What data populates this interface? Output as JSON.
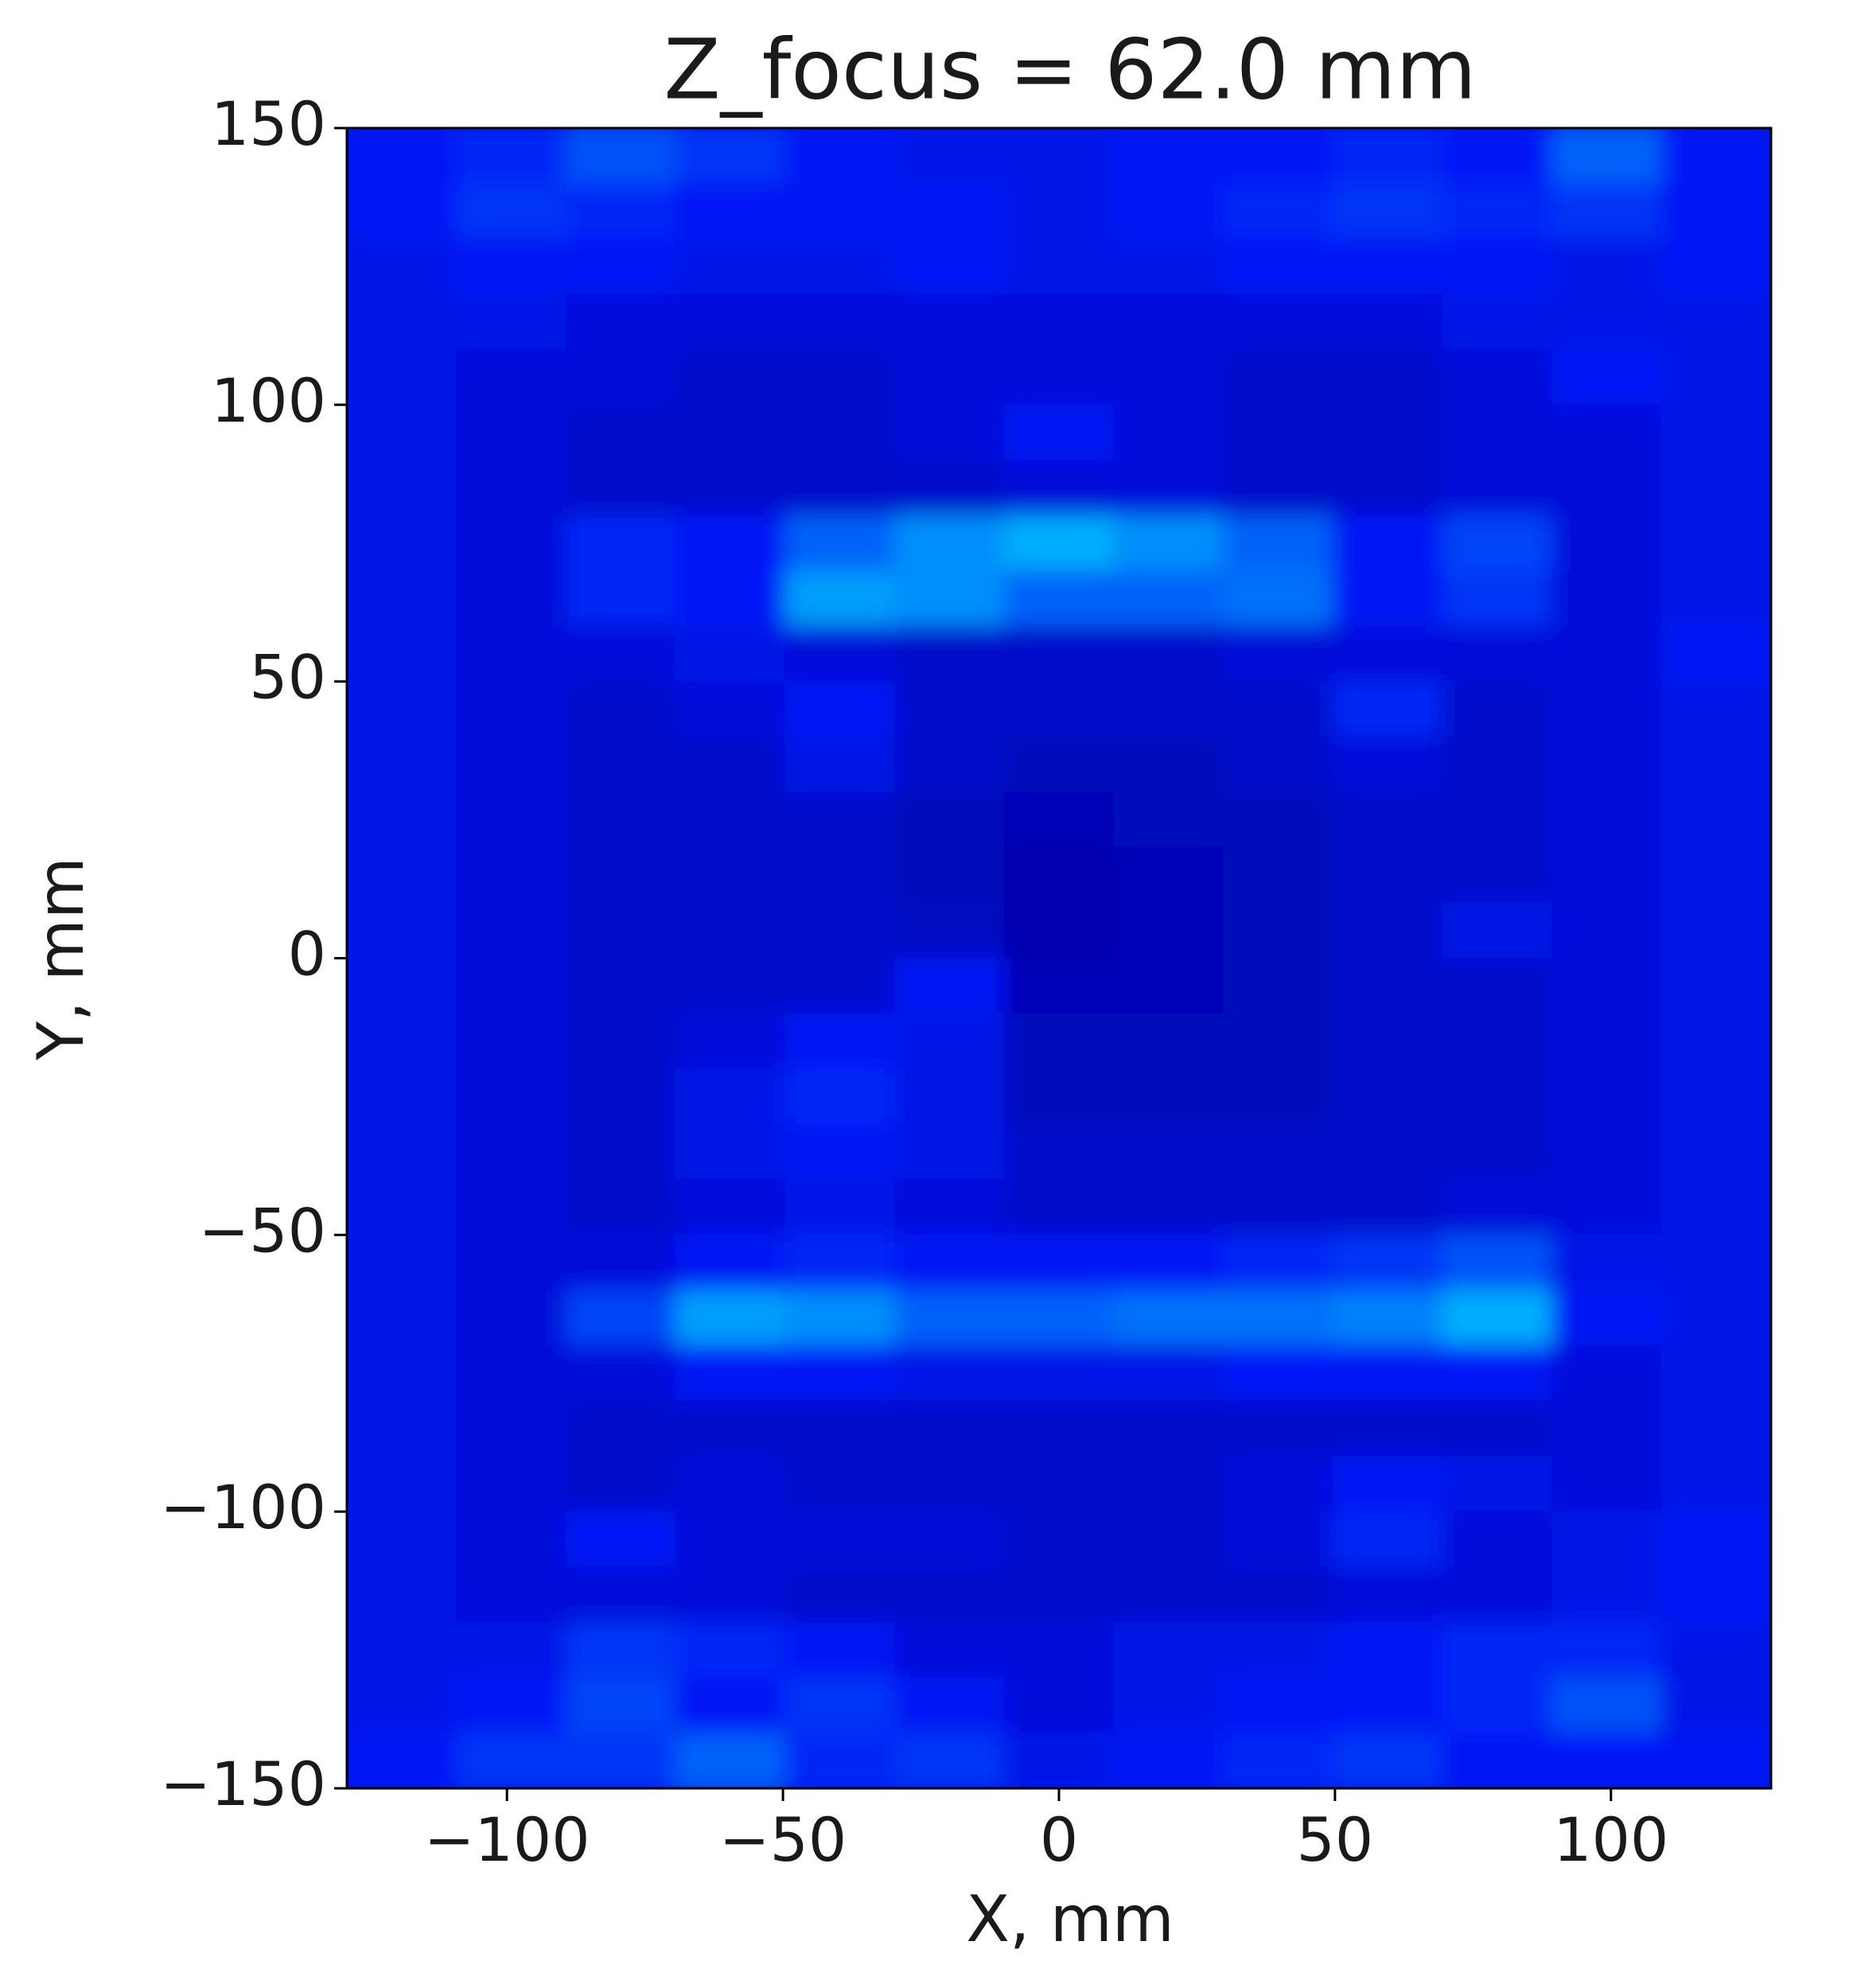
{
  "chart_data": {
    "type": "heatmap",
    "title": "Z_focus = 62.0 mm",
    "x_label": "X, mm",
    "y_label": "Y, mm",
    "xlim": [
      -129,
      129
    ],
    "ylim": [
      -150,
      150
    ],
    "xticks": [
      {
        "value": -100,
        "label": "−100"
      },
      {
        "value": -50,
        "label": "−50"
      },
      0,
      50,
      100
    ],
    "yticks": [
      {
        "value": -150,
        "label": "−150"
      },
      {
        "value": -100,
        "label": "−100"
      },
      {
        "value": -50,
        "label": "−50"
      },
      0,
      50,
      100,
      150
    ],
    "colorscale": [
      [
        0,
        "#0000a0"
      ],
      [
        0.3,
        "#0018f5"
      ],
      [
        1,
        "#00e8ff"
      ]
    ],
    "z": [
      [
        0.3,
        0.35,
        0.5,
        0.4,
        0.3,
        0.25,
        0.25,
        0.3,
        0.3,
        0.35,
        0.3,
        0.55,
        0.3
      ],
      [
        0.3,
        0.4,
        0.35,
        0.3,
        0.3,
        0.3,
        0.25,
        0.3,
        0.35,
        0.4,
        0.35,
        0.4,
        0.3
      ],
      [
        0.25,
        0.3,
        0.3,
        0.25,
        0.25,
        0.3,
        0.25,
        0.25,
        0.3,
        0.3,
        0.3,
        0.25,
        0.3
      ],
      [
        0.25,
        0.25,
        0.2,
        0.2,
        0.2,
        0.2,
        0.2,
        0.2,
        0.2,
        0.2,
        0.25,
        0.25,
        0.25
      ],
      [
        0.25,
        0.2,
        0.2,
        0.15,
        0.15,
        0.2,
        0.2,
        0.2,
        0.15,
        0.15,
        0.2,
        0.3,
        0.25
      ],
      [
        0.25,
        0.2,
        0.15,
        0.15,
        0.15,
        0.2,
        0.3,
        0.2,
        0.15,
        0.15,
        0.2,
        0.2,
        0.25
      ],
      [
        0.25,
        0.2,
        0.15,
        0.15,
        0.15,
        0.15,
        0.2,
        0.2,
        0.15,
        0.15,
        0.2,
        0.2,
        0.25
      ],
      [
        0.25,
        0.2,
        0.35,
        0.3,
        0.55,
        0.7,
        0.8,
        0.7,
        0.55,
        0.3,
        0.45,
        0.2,
        0.25
      ],
      [
        0.25,
        0.2,
        0.35,
        0.3,
        0.75,
        0.7,
        0.55,
        0.55,
        0.6,
        0.3,
        0.4,
        0.2,
        0.25
      ],
      [
        0.25,
        0.2,
        0.2,
        0.25,
        0.2,
        0.15,
        0.15,
        0.15,
        0.2,
        0.2,
        0.2,
        0.2,
        0.3
      ],
      [
        0.25,
        0.2,
        0.15,
        0.2,
        0.3,
        0.15,
        0.15,
        0.15,
        0.15,
        0.35,
        0.15,
        0.2,
        0.25
      ],
      [
        0.25,
        0.2,
        0.15,
        0.15,
        0.25,
        0.15,
        0.1,
        0.1,
        0.15,
        0.2,
        0.15,
        0.2,
        0.25
      ],
      [
        0.25,
        0.2,
        0.15,
        0.15,
        0.15,
        0.1,
        0.08,
        0.1,
        0.1,
        0.15,
        0.15,
        0.2,
        0.25
      ],
      [
        0.25,
        0.2,
        0.15,
        0.15,
        0.15,
        0.1,
        0.05,
        0.08,
        0.1,
        0.15,
        0.15,
        0.2,
        0.25
      ],
      [
        0.25,
        0.2,
        0.15,
        0.15,
        0.15,
        0.12,
        0.05,
        0.08,
        0.1,
        0.15,
        0.25,
        0.2,
        0.25
      ],
      [
        0.25,
        0.2,
        0.15,
        0.15,
        0.15,
        0.3,
        0.08,
        0.08,
        0.1,
        0.15,
        0.15,
        0.2,
        0.25
      ],
      [
        0.25,
        0.2,
        0.15,
        0.2,
        0.3,
        0.25,
        0.1,
        0.1,
        0.1,
        0.15,
        0.15,
        0.2,
        0.25
      ],
      [
        0.25,
        0.2,
        0.15,
        0.25,
        0.35,
        0.25,
        0.1,
        0.1,
        0.1,
        0.15,
        0.15,
        0.2,
        0.25
      ],
      [
        0.25,
        0.2,
        0.15,
        0.25,
        0.3,
        0.25,
        0.15,
        0.15,
        0.15,
        0.15,
        0.15,
        0.2,
        0.25
      ],
      [
        0.25,
        0.2,
        0.15,
        0.2,
        0.25,
        0.2,
        0.15,
        0.15,
        0.15,
        0.15,
        0.2,
        0.2,
        0.25
      ],
      [
        0.25,
        0.2,
        0.2,
        0.3,
        0.35,
        0.3,
        0.3,
        0.3,
        0.35,
        0.4,
        0.5,
        0.25,
        0.25
      ],
      [
        0.25,
        0.2,
        0.45,
        0.75,
        0.7,
        0.55,
        0.55,
        0.6,
        0.6,
        0.65,
        0.8,
        0.3,
        0.25
      ],
      [
        0.25,
        0.2,
        0.2,
        0.3,
        0.3,
        0.25,
        0.25,
        0.25,
        0.3,
        0.3,
        0.3,
        0.2,
        0.25
      ],
      [
        0.25,
        0.2,
        0.15,
        0.15,
        0.15,
        0.15,
        0.15,
        0.15,
        0.15,
        0.15,
        0.15,
        0.2,
        0.25
      ],
      [
        0.25,
        0.2,
        0.15,
        0.2,
        0.15,
        0.15,
        0.15,
        0.15,
        0.2,
        0.3,
        0.25,
        0.2,
        0.25
      ],
      [
        0.25,
        0.2,
        0.3,
        0.2,
        0.2,
        0.2,
        0.15,
        0.15,
        0.2,
        0.35,
        0.2,
        0.25,
        0.3
      ],
      [
        0.25,
        0.2,
        0.2,
        0.2,
        0.15,
        0.15,
        0.15,
        0.15,
        0.15,
        0.2,
        0.2,
        0.25,
        0.3
      ],
      [
        0.25,
        0.25,
        0.4,
        0.35,
        0.3,
        0.2,
        0.2,
        0.25,
        0.25,
        0.3,
        0.35,
        0.35,
        0.25
      ],
      [
        0.25,
        0.3,
        0.45,
        0.3,
        0.4,
        0.3,
        0.2,
        0.25,
        0.3,
        0.3,
        0.35,
        0.5,
        0.25
      ],
      [
        0.3,
        0.4,
        0.4,
        0.55,
        0.35,
        0.4,
        0.25,
        0.3,
        0.35,
        0.4,
        0.3,
        0.3,
        0.3
      ]
    ]
  }
}
